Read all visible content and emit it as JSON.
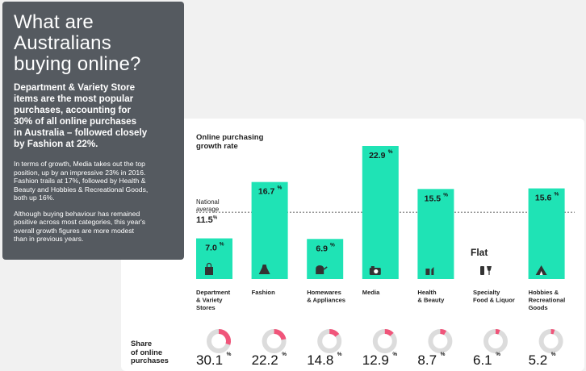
{
  "panel": {
    "title_lines": [
      "What are",
      "Australians",
      "buying online?"
    ],
    "lead_lines": [
      "Department & Variety Store",
      "items are the most popular",
      "purchases, accounting for",
      "30% of all online purchases",
      "in Australia – followed closely",
      "by Fashion at 22%."
    ],
    "para1_lines": [
      "In terms of growth, Media takes out the top",
      "position, up by an impressive 23% in 2016.",
      "Fashion trails at 17%, followed by Health &",
      "Beauty and Hobbies & Recreational Goods,",
      "both up 16%."
    ],
    "para2_lines": [
      "Although buying behaviour has remained",
      "positive across most categories, this year's",
      "overall growth figures are more modest",
      "than in previous years."
    ]
  },
  "chart_data": {
    "type": "bar",
    "title_lines": [
      "Online purchasing",
      "growth rate"
    ],
    "categories": [
      {
        "lines": [
          "Department",
          "& Variety",
          "Stores"
        ],
        "icon": "shopping-bag-icon"
      },
      {
        "lines": [
          "Fashion"
        ],
        "icon": "dress-icon"
      },
      {
        "lines": [
          "Homewares",
          "& Appliances"
        ],
        "icon": "kettle-icon"
      },
      {
        "lines": [
          "Media"
        ],
        "icon": "camera-icon"
      },
      {
        "lines": [
          "Health",
          "& Beauty"
        ],
        "icon": "lipstick-icon"
      },
      {
        "lines": [
          "Specialty",
          "Food & Liquor"
        ],
        "icon": "wine-icon"
      },
      {
        "lines": [
          "Hobbies &",
          "Recreational",
          "Goods"
        ],
        "icon": "tent-icon"
      }
    ],
    "values": [
      7.0,
      16.7,
      6.9,
      22.9,
      15.5,
      null,
      15.6
    ],
    "value_labels": [
      "7.0",
      "16.7",
      "6.9",
      "22.9",
      "15.5",
      "",
      "15.6"
    ],
    "flat_index": 5,
    "flat_label": "Flat",
    "national_average": {
      "label_lines": [
        "National",
        "average"
      ],
      "value": 11.5,
      "value_label": "11.5"
    },
    "percent_sign": "%",
    "ylim": [
      0,
      24
    ],
    "bar_color": "#1fe3b5",
    "share": {
      "label_lines": [
        "Share",
        "of online",
        "purchases"
      ],
      "values": [
        30.1,
        22.2,
        14.8,
        12.9,
        8.7,
        6.1,
        5.2
      ],
      "value_labels": [
        "30.1",
        "22.2",
        "14.8",
        "12.9",
        "8.7",
        "6.1",
        "5.2"
      ],
      "ring_color": "#f0557a",
      "ring_track": "#dcdcdc"
    }
  }
}
